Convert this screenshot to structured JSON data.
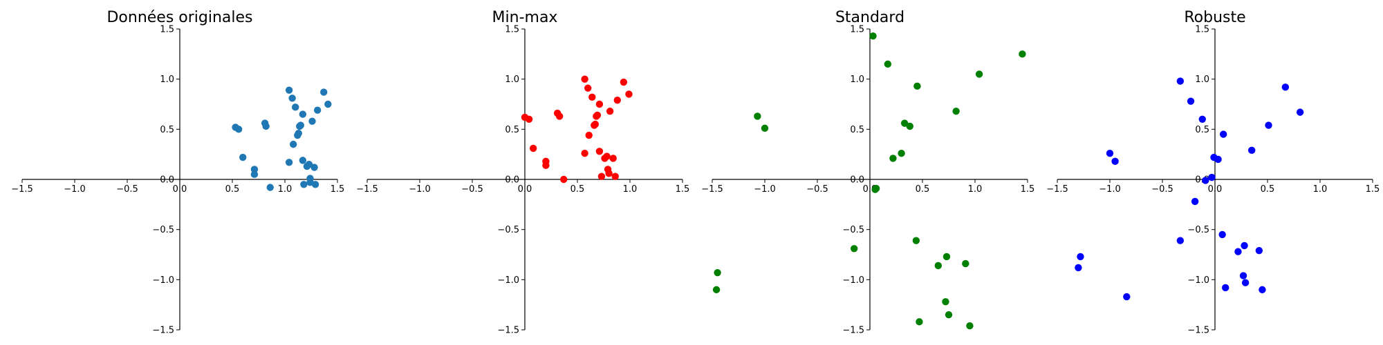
{
  "chart_data": [
    {
      "type": "scatter",
      "title": "Données originales",
      "xlim": [
        -1.5,
        1.5
      ],
      "ylim": [
        -1.5,
        1.5
      ],
      "xticks": [
        -1.5,
        -1.0,
        -0.5,
        0.0,
        0.5,
        1.0,
        1.5
      ],
      "yticks": [
        -1.5,
        -1.0,
        -0.5,
        0.0,
        0.5,
        1.0,
        1.5
      ],
      "color": "#1f77b4",
      "grid": false,
      "points": [
        {
          "x": 0.53,
          "y": 0.52
        },
        {
          "x": 0.56,
          "y": 0.5
        },
        {
          "x": 0.6,
          "y": 0.22
        },
        {
          "x": 0.71,
          "y": 0.1
        },
        {
          "x": 0.71,
          "y": 0.05
        },
        {
          "x": 0.81,
          "y": 0.56
        },
        {
          "x": 0.82,
          "y": 0.53
        },
        {
          "x": 0.86,
          "y": -0.08
        },
        {
          "x": 1.04,
          "y": 0.89
        },
        {
          "x": 1.04,
          "y": 0.17
        },
        {
          "x": 1.07,
          "y": 0.81
        },
        {
          "x": 1.08,
          "y": 0.35
        },
        {
          "x": 1.1,
          "y": 0.72
        },
        {
          "x": 1.12,
          "y": 0.44
        },
        {
          "x": 1.13,
          "y": 0.46
        },
        {
          "x": 1.15,
          "y": 0.54
        },
        {
          "x": 1.14,
          "y": 0.53
        },
        {
          "x": 1.17,
          "y": 0.65
        },
        {
          "x": 1.17,
          "y": 0.19
        },
        {
          "x": 1.18,
          "y": -0.05
        },
        {
          "x": 1.21,
          "y": 0.13
        },
        {
          "x": 1.23,
          "y": 0.15
        },
        {
          "x": 1.24,
          "y": 0.01
        },
        {
          "x": 1.24,
          "y": -0.03
        },
        {
          "x": 1.26,
          "y": 0.58
        },
        {
          "x": 1.28,
          "y": 0.12
        },
        {
          "x": 1.29,
          "y": -0.05
        },
        {
          "x": 1.31,
          "y": 0.69
        },
        {
          "x": 1.37,
          "y": 0.87
        },
        {
          "x": 1.41,
          "y": 0.75
        }
      ]
    },
    {
      "type": "scatter",
      "title": "Min-max",
      "xlim": [
        -1.5,
        1.5
      ],
      "ylim": [
        -1.5,
        1.5
      ],
      "xticks": [
        -1.5,
        -1.0,
        -0.5,
        0.0,
        0.5,
        1.0,
        1.5
      ],
      "yticks": [
        -1.5,
        -1.0,
        -0.5,
        0.0,
        0.5,
        1.0,
        1.5
      ],
      "color": "#ff0000",
      "grid": false,
      "points": [
        {
          "x": 0.0,
          "y": 0.62
        },
        {
          "x": 0.04,
          "y": 0.6
        },
        {
          "x": 0.08,
          "y": 0.31
        },
        {
          "x": 0.2,
          "y": 0.18
        },
        {
          "x": 0.2,
          "y": 0.14
        },
        {
          "x": 0.31,
          "y": 0.66
        },
        {
          "x": 0.33,
          "y": 0.63
        },
        {
          "x": 0.37,
          "y": 0.0
        },
        {
          "x": 0.57,
          "y": 1.0
        },
        {
          "x": 0.57,
          "y": 0.26
        },
        {
          "x": 0.6,
          "y": 0.91
        },
        {
          "x": 0.61,
          "y": 0.44
        },
        {
          "x": 0.64,
          "y": 0.82
        },
        {
          "x": 0.66,
          "y": 0.54
        },
        {
          "x": 0.67,
          "y": 0.55
        },
        {
          "x": 0.69,
          "y": 0.64
        },
        {
          "x": 0.68,
          "y": 0.63
        },
        {
          "x": 0.71,
          "y": 0.75
        },
        {
          "x": 0.71,
          "y": 0.28
        },
        {
          "x": 0.73,
          "y": 0.03
        },
        {
          "x": 0.76,
          "y": 0.21
        },
        {
          "x": 0.78,
          "y": 0.23
        },
        {
          "x": 0.79,
          "y": 0.1
        },
        {
          "x": 0.8,
          "y": 0.06
        },
        {
          "x": 0.81,
          "y": 0.68
        },
        {
          "x": 0.84,
          "y": 0.21
        },
        {
          "x": 0.86,
          "y": 0.03
        },
        {
          "x": 0.88,
          "y": 0.79
        },
        {
          "x": 0.94,
          "y": 0.97
        },
        {
          "x": 0.99,
          "y": 0.85
        }
      ]
    },
    {
      "type": "scatter",
      "title": "Standard",
      "xlim": [
        -1.5,
        1.5
      ],
      "ylim": [
        -1.5,
        1.5
      ],
      "xticks": [
        -1.5,
        -1.0,
        -0.5,
        0.0,
        0.5,
        1.0,
        1.5
      ],
      "yticks": [
        -1.5,
        -1.0,
        -0.5,
        0.0,
        0.5,
        1.0,
        1.5
      ],
      "color": "#008000",
      "grid": false,
      "points": [
        {
          "x": -1.46,
          "y": -1.1
        },
        {
          "x": -1.45,
          "y": -0.93
        },
        {
          "x": -1.07,
          "y": 0.63
        },
        {
          "x": -1.0,
          "y": 0.51
        },
        {
          "x": -0.15,
          "y": -0.69
        },
        {
          "x": 0.03,
          "y": 1.43
        },
        {
          "x": 0.06,
          "y": -0.09
        },
        {
          "x": 0.05,
          "y": -0.1
        },
        {
          "x": 0.17,
          "y": 1.15
        },
        {
          "x": 0.22,
          "y": 0.21
        },
        {
          "x": 0.3,
          "y": 0.26
        },
        {
          "x": 0.33,
          "y": 0.56
        },
        {
          "x": 0.38,
          "y": 0.53
        },
        {
          "x": 0.45,
          "y": 0.93
        },
        {
          "x": 0.44,
          "y": -0.61
        },
        {
          "x": 0.47,
          "y": -1.42
        },
        {
          "x": 0.65,
          "y": -0.86
        },
        {
          "x": 0.72,
          "y": -1.22
        },
        {
          "x": 0.73,
          "y": -0.77
        },
        {
          "x": 0.75,
          "y": -1.35
        },
        {
          "x": 0.82,
          "y": 0.68
        },
        {
          "x": 0.91,
          "y": -0.84
        },
        {
          "x": 0.95,
          "y": -1.46
        },
        {
          "x": 1.04,
          "y": 1.05
        },
        {
          "x": 1.45,
          "y": 1.25
        }
      ]
    },
    {
      "type": "scatter",
      "title": "Robuste",
      "xlim": [
        -1.5,
        1.5
      ],
      "ylim": [
        -1.5,
        1.5
      ],
      "xticks": [
        -1.5,
        -1.0,
        -0.5,
        0.0,
        0.5,
        1.0,
        1.5
      ],
      "yticks": [
        -1.5,
        -1.0,
        -0.5,
        0.0,
        0.5,
        1.0,
        1.5
      ],
      "color": "#0000ff",
      "grid": false,
      "points": [
        {
          "x": -1.3,
          "y": -0.88
        },
        {
          "x": -1.28,
          "y": -0.77
        },
        {
          "x": -1.0,
          "y": 0.26
        },
        {
          "x": -0.95,
          "y": 0.18
        },
        {
          "x": -0.84,
          "y": -1.17
        },
        {
          "x": -0.33,
          "y": 0.98
        },
        {
          "x": -0.33,
          "y": -0.61
        },
        {
          "x": -0.23,
          "y": 0.78
        },
        {
          "x": -0.19,
          "y": -0.22
        },
        {
          "x": -0.12,
          "y": 0.6
        },
        {
          "x": -0.09,
          "y": -0.01
        },
        {
          "x": -0.03,
          "y": 0.02
        },
        {
          "x": -0.01,
          "y": 0.22
        },
        {
          "x": 0.03,
          "y": 0.2
        },
        {
          "x": 0.08,
          "y": 0.45
        },
        {
          "x": 0.07,
          "y": -0.55
        },
        {
          "x": 0.1,
          "y": -1.08
        },
        {
          "x": 0.22,
          "y": -0.72
        },
        {
          "x": 0.27,
          "y": -0.96
        },
        {
          "x": 0.28,
          "y": -0.66
        },
        {
          "x": 0.29,
          "y": -1.03
        },
        {
          "x": 0.35,
          "y": 0.29
        },
        {
          "x": 0.42,
          "y": -0.71
        },
        {
          "x": 0.45,
          "y": -1.1
        },
        {
          "x": 0.51,
          "y": 0.54
        },
        {
          "x": 0.67,
          "y": 0.92
        },
        {
          "x": 0.81,
          "y": 0.67
        }
      ]
    }
  ]
}
